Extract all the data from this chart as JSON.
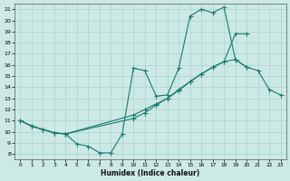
{
  "xlabel": "Humidex (Indice chaleur)",
  "xlim": [
    -0.5,
    23.5
  ],
  "ylim": [
    7.5,
    21.5
  ],
  "yticks": [
    8,
    9,
    10,
    11,
    12,
    13,
    14,
    15,
    16,
    17,
    18,
    19,
    20,
    21
  ],
  "xticks": [
    0,
    1,
    2,
    3,
    4,
    5,
    6,
    7,
    8,
    9,
    10,
    11,
    12,
    13,
    14,
    15,
    16,
    17,
    18,
    19,
    20,
    21,
    22,
    23
  ],
  "background_color": "#cce9e5",
  "grid_color": "#aad4cf",
  "line_color": "#1a7a6e",
  "line1_x": [
    0,
    1,
    2,
    3,
    4,
    5,
    6,
    7,
    8,
    9,
    10,
    11,
    12,
    13,
    14,
    15,
    16,
    17,
    18,
    19,
    20
  ],
  "line1_y": [
    11.0,
    10.5,
    10.2,
    9.9,
    9.8,
    8.9,
    8.7,
    8.1,
    8.1,
    9.8,
    15.7,
    15.5,
    13.2,
    13.3,
    15.7,
    20.4,
    21.0,
    20.7,
    21.2,
    16.5,
    15.8
  ],
  "line2_x": [
    0,
    1,
    2,
    3,
    4,
    10,
    11,
    12,
    13,
    14,
    15,
    16,
    17,
    18,
    19,
    20,
    21,
    22,
    23
  ],
  "line2_y": [
    11.0,
    10.5,
    10.2,
    9.9,
    9.8,
    11.5,
    12.0,
    12.5,
    13.0,
    13.7,
    14.5,
    15.2,
    15.8,
    16.3,
    16.5,
    15.8,
    15.5,
    13.8,
    13.3
  ],
  "line3_x": [
    0,
    1,
    2,
    3,
    4,
    10,
    11,
    12,
    13,
    14,
    15,
    16,
    17,
    18,
    19,
    20
  ],
  "line3_y": [
    11.0,
    10.5,
    10.2,
    9.9,
    9.8,
    11.2,
    11.7,
    12.4,
    13.0,
    13.8,
    14.5,
    15.2,
    15.8,
    16.3,
    18.8,
    18.8
  ]
}
